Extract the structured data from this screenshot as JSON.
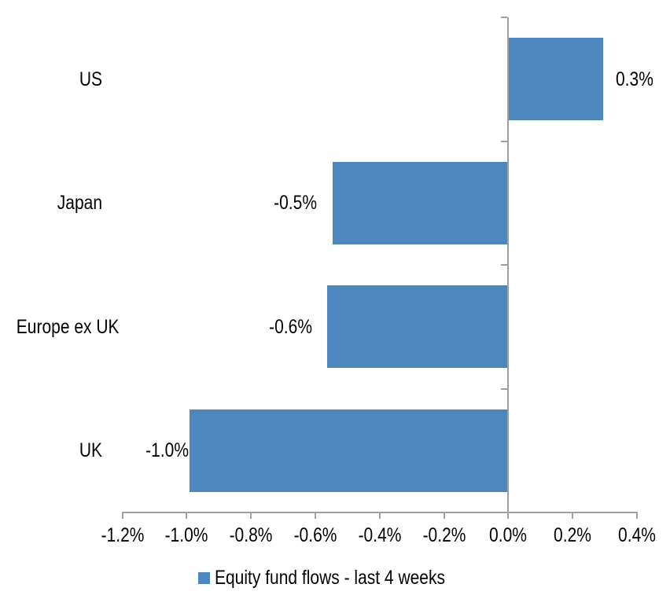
{
  "chart_data": {
    "type": "bar",
    "orientation": "horizontal",
    "title": "",
    "categories": [
      "US",
      "Japan",
      "Europe ex UK",
      "UK"
    ],
    "series": [
      {
        "name": "Equity fund flows - last 4 weeks",
        "values": [
          0.3,
          -0.5,
          -0.6,
          -1.0
        ],
        "values_precise": [
          0.295,
          -0.546,
          -0.562,
          -0.991
        ],
        "data_labels": [
          "0.3%",
          "-0.5%",
          "-0.6%",
          "-1.0%"
        ],
        "unit": "%"
      }
    ],
    "x_axis": {
      "min": -1.2,
      "max": 0.4,
      "tick_step": 0.2,
      "tick_labels": [
        "-1.2%",
        "-1.0%",
        "-0.8%",
        "-0.6%",
        "-0.4%",
        "-0.2%",
        "0.0%",
        "0.2%",
        "0.4%"
      ]
    },
    "y_axis": {
      "categories_top_to_bottom": [
        "US",
        "Japan",
        "Europe ex UK",
        "UK"
      ]
    },
    "legend": {
      "position": "bottom",
      "items": [
        {
          "label": "Equity fund flows - last 4 weeks",
          "swatch_color": "#4E87BE"
        }
      ]
    },
    "grid": false,
    "colors": {
      "bar": "#4E87BE",
      "axis": "#A0A0A0",
      "text": "#000000",
      "background": "#FFFFFF"
    }
  }
}
